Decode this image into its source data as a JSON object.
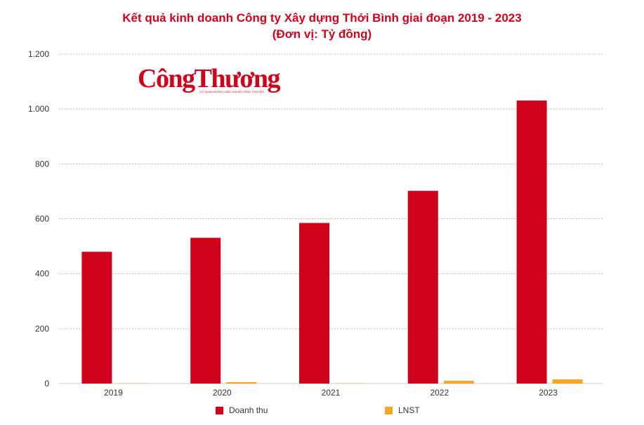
{
  "title_line1": "Kết quả kinh doanh Công ty Xây dựng Thới Bình giai đoạn 2019 - 2023",
  "title_line2": "(Đơn vị: Tỷ đồng)",
  "logo": {
    "text": "CôngThương",
    "subtext": "CƠ QUAN NGÔN LUẬN CỦA BỘ CÔNG THƯƠNG"
  },
  "chart_data": {
    "type": "bar",
    "title": "Kết quả kinh doanh Công ty Xây dựng Thới Bình giai đoạn 2019 - 2023",
    "subtitle": "(Đơn vị: Tỷ đồng)",
    "categories": [
      "2019",
      "2020",
      "2021",
      "2022",
      "2023"
    ],
    "series": [
      {
        "name": "Doanh thu",
        "color": "#d0021b",
        "values": [
          480,
          531,
          585,
          702,
          1031
        ]
      },
      {
        "name": "LNST",
        "color": "#f5a623",
        "values": [
          1,
          5,
          1,
          10,
          15
        ]
      }
    ],
    "ylim": [
      0,
      1200
    ],
    "yticks": [
      0,
      200,
      400,
      600,
      800,
      1000,
      1200
    ],
    "ytick_labels": [
      "0",
      "200",
      "400",
      "600",
      "800",
      "1.000",
      "1.200"
    ],
    "grid": true,
    "legend": "bottom"
  }
}
